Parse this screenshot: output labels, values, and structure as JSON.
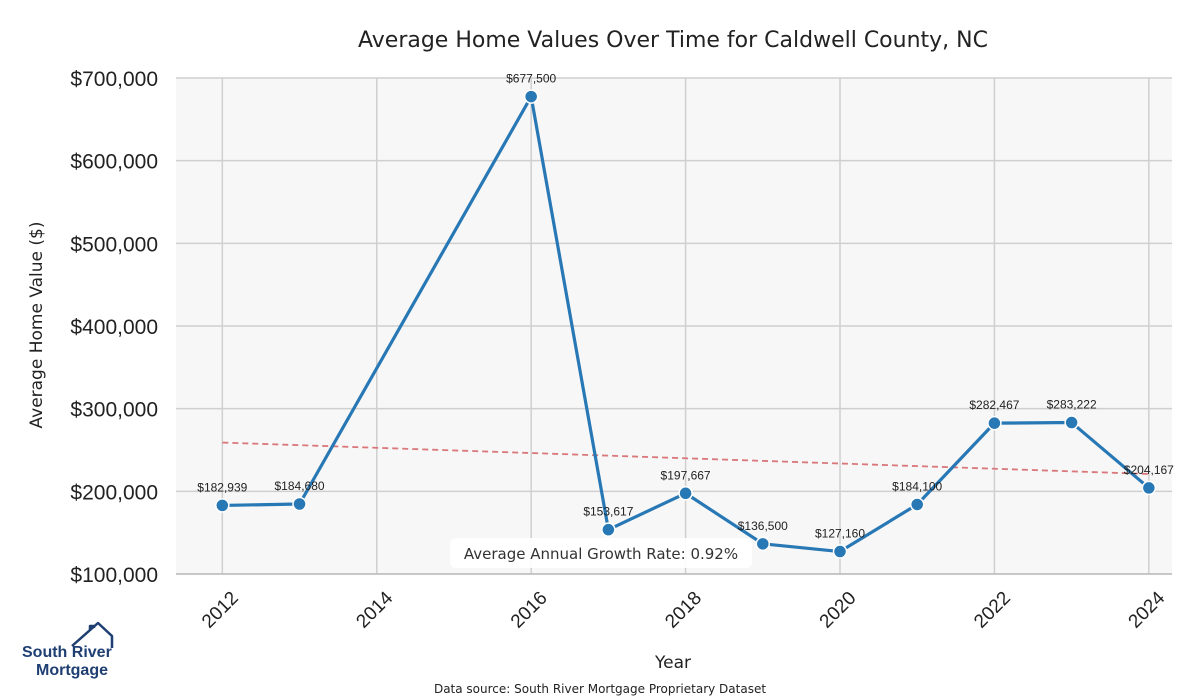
{
  "chart_data": {
    "type": "line",
    "title": "Average Home Values Over Time for Caldwell County, NC",
    "xlabel": "Year",
    "ylabel": "Average Home Value ($)",
    "xlim": [
      2011.4,
      2024.3
    ],
    "ylim": [
      100000,
      700000
    ],
    "x_ticks": [
      2012,
      2014,
      2016,
      2018,
      2020,
      2022,
      2024
    ],
    "y_ticks": [
      100000,
      200000,
      300000,
      400000,
      500000,
      600000,
      700000
    ],
    "y_tick_labels": [
      "$100,000",
      "$200,000",
      "$300,000",
      "$400,000",
      "$500,000",
      "$600,000",
      "$700,000"
    ],
    "grid": true,
    "series": [
      {
        "color": "#2878b5",
        "points": [
          {
            "x": 2012,
            "y": 182939,
            "label": "$182,939"
          },
          {
            "x": 2013,
            "y": 184680,
            "label": "$184,680"
          },
          {
            "x": 2016,
            "y": 677500,
            "label": "$677,500"
          },
          {
            "x": 2017,
            "y": 153617,
            "label": "$153,617"
          },
          {
            "x": 2018,
            "y": 197667,
            "label": "$197,667"
          },
          {
            "x": 2019,
            "y": 136500,
            "label": "$136,500"
          },
          {
            "x": 2020,
            "y": 127160,
            "label": "$127,160"
          },
          {
            "x": 2021,
            "y": 184100,
            "label": "$184,100"
          },
          {
            "x": 2022,
            "y": 282467,
            "label": "$282,467"
          },
          {
            "x": 2023,
            "y": 283222,
            "label": "$283,222"
          },
          {
            "x": 2024,
            "y": 204167,
            "label": "$204,167"
          }
        ]
      }
    ],
    "trendline": {
      "color": "#d9777a",
      "style": "dashed",
      "x": [
        2012,
        2024
      ],
      "y": [
        259000,
        221000
      ]
    },
    "annotation": "Average Annual Growth Rate: 0.92%",
    "source": "Data source: South River Mortgage Proprietary Dataset"
  },
  "logo": {
    "line1": "South River",
    "line2": "Mortgage",
    "icon": "house-roof-icon",
    "color": "#1f3f73"
  }
}
